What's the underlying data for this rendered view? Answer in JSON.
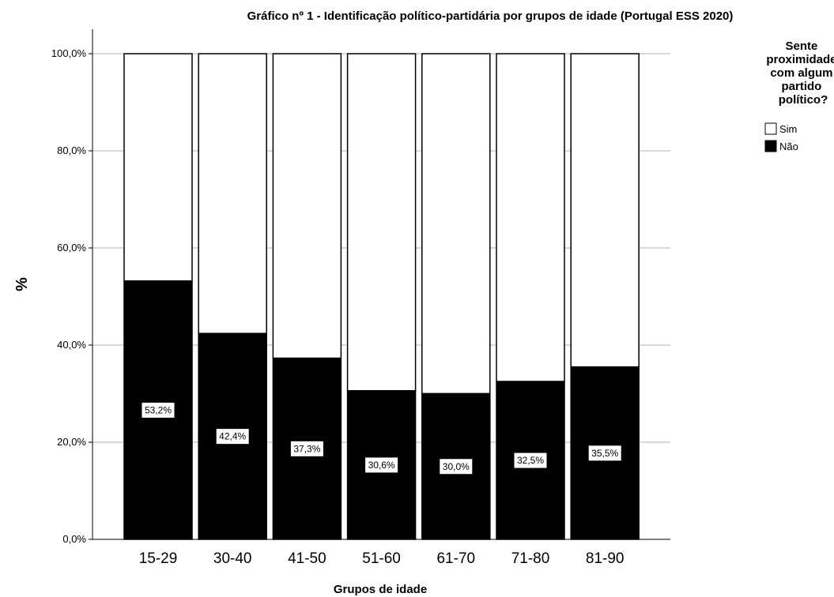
{
  "chart_data": {
    "type": "bar",
    "stacked": true,
    "title": "Gráfico nº 1 - Identificação político-partidária por grupos de idade (Portugal ESS 2020)",
    "xlabel": "Grupos de idade",
    "ylabel": "%",
    "ylim": [
      0,
      100
    ],
    "yticks": [
      "0,0%",
      "20,0%",
      "40,0%",
      "60,0%",
      "80,0%",
      "100,0%"
    ],
    "ytick_values": [
      0,
      20,
      40,
      60,
      80,
      100
    ],
    "grid": true,
    "categories": [
      "15-29",
      "30-40",
      "41-50",
      "51-60",
      "61-70",
      "71-80",
      "81-90"
    ],
    "series": [
      {
        "name": "Não",
        "color": "#000000",
        "values": [
          53.2,
          42.4,
          37.3,
          30.6,
          30.0,
          32.5,
          35.5
        ],
        "labels": [
          "53,2%",
          "42,4%",
          "37,3%",
          "30,6%",
          "30,0%",
          "32,5%",
          "35,5%"
        ]
      },
      {
        "name": "Sim",
        "color": "#ffffff",
        "values": [
          46.8,
          57.6,
          62.7,
          69.4,
          70.0,
          67.5,
          64.5
        ]
      }
    ],
    "legend": {
      "title_lines": [
        "Sente",
        "proximidade",
        "com algum",
        "partido",
        "político?"
      ],
      "items": [
        "Sim",
        "Não"
      ],
      "placement": "right"
    }
  }
}
